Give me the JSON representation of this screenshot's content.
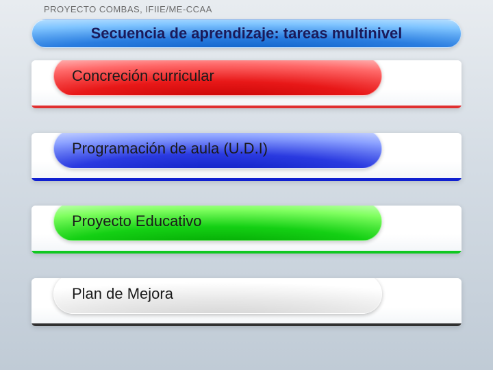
{
  "header": "PROYECTO COMBAS, IFIIE/ME-CCAA",
  "title": "Secuencia de aprendizaje: tareas multinivel",
  "title_color": "#1a1a5a",
  "title_bar_gradient": [
    "#0a5cc4",
    "#2a7de0",
    "#7fc4ff",
    "#c0e4ff"
  ],
  "background_gradient": [
    "#e8ecf0",
    "#d4dce4",
    "#c0cbd6"
  ],
  "font_family": "Verdana",
  "item_fontsize": 22,
  "rows": [
    {
      "label": "Concreción curricular",
      "pill_class": "red",
      "border_class": "red",
      "pill_fill": "#e81818",
      "border_color": "#e03030"
    },
    {
      "label": "Programación de aula (U.D.I)",
      "pill_class": "blue",
      "border_class": "blue",
      "pill_fill": "#2a3ae0",
      "border_color": "#1020d0"
    },
    {
      "label": "Proyecto Educativo",
      "pill_class": "green",
      "border_class": "green",
      "pill_fill": "#14d014",
      "border_color": "#10c820"
    },
    {
      "label": "Plan de Mejora",
      "pill_class": "white",
      "border_class": "black",
      "pill_fill": "#ffffff",
      "border_color": "#303030"
    }
  ]
}
